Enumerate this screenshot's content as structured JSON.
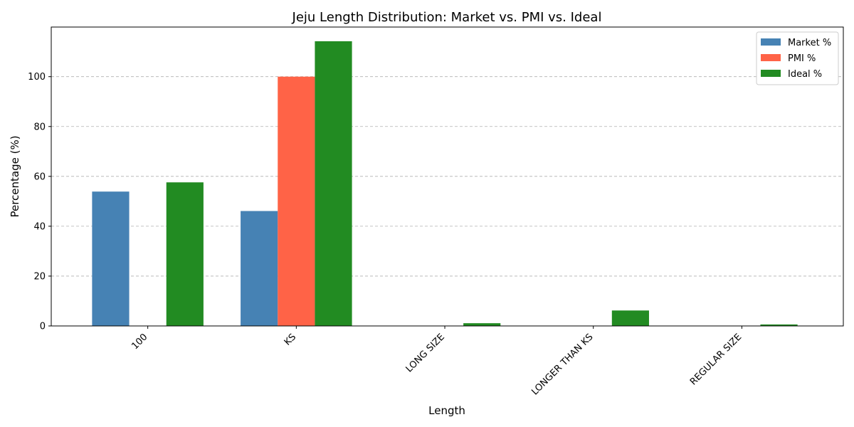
{
  "chart_data": {
    "type": "bar",
    "title": "Jeju Length Distribution: Market vs. PMI vs. Ideal",
    "xlabel": "Length",
    "ylabel": "Percentage (%)",
    "categories": [
      "100",
      "KS",
      "LONG SIZE",
      "LONGER THAN KS",
      "REGULAR SIZE"
    ],
    "series": [
      {
        "name": "Market %",
        "color": "#4682b4",
        "values": [
          53.9,
          46.1,
          0,
          0,
          0
        ]
      },
      {
        "name": "PMI %",
        "color": "#ff6347",
        "values": [
          0,
          100,
          0,
          0,
          0
        ]
      },
      {
        "name": "Ideal %",
        "color": "#228b22",
        "values": [
          57.6,
          114.2,
          1.1,
          6.2,
          0.6
        ]
      }
    ],
    "ylim": [
      0,
      119.9
    ],
    "yticks": [
      0,
      20,
      40,
      60,
      80,
      100
    ],
    "grid": "y-dashed",
    "legend_position": "top-right"
  }
}
